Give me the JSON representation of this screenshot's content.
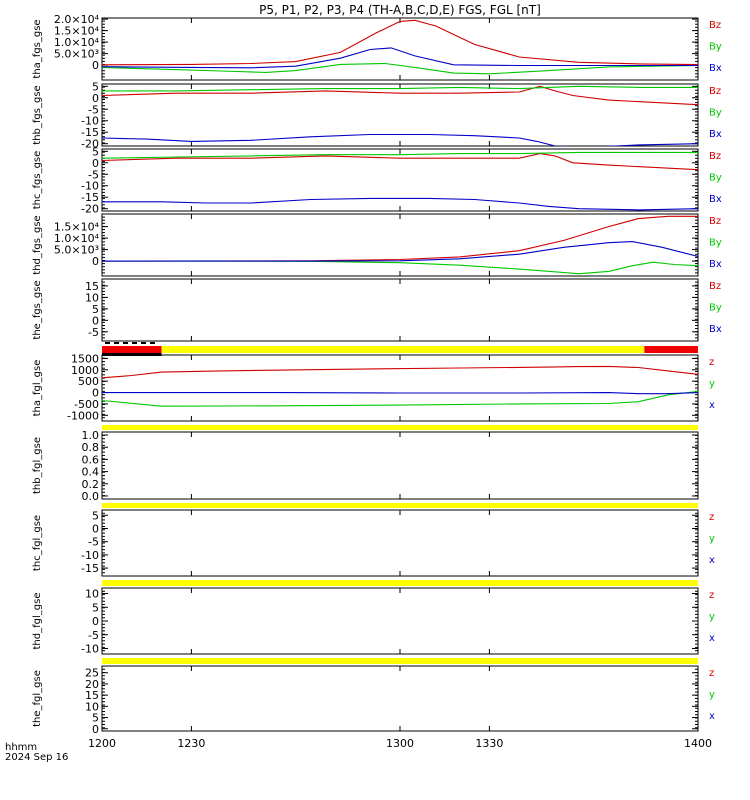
{
  "title": "P5, P1, P2, P3, P4 (TH-A,B,C,D,E) FGS, FGL [nT]",
  "footer": {
    "time_label": "hhmm",
    "date_label": "2024 Sep 16"
  },
  "colors": {
    "x": "#0000c8",
    "y": "#00c800",
    "z": "#d00000",
    "bar_yellow": "#ffff00",
    "bar_red": "#ee0000",
    "bar_black": "#000000"
  },
  "chart_data": [
    {
      "type": "line",
      "ylabel": "tha_fgs_gse",
      "ylim": [
        -6500,
        20500
      ],
      "yticks": [
        0,
        5000,
        10000,
        15000,
        20000
      ],
      "ytick_labels": [
        "0",
        "5.0×10³",
        "1.0×10⁴",
        "1.5×10⁴",
        "2.0×10⁴"
      ],
      "xlim": [
        1200,
        1400
      ],
      "legend": [
        "Bz",
        "By",
        "Bx"
      ],
      "series": [
        {
          "name": "Bz",
          "color": "#d00000",
          "x": [
            1200,
            1230,
            1250,
            1265,
            1280,
            1292,
            1300,
            1305,
            1312,
            1325,
            1340,
            1360,
            1380,
            1400
          ],
          "y": [
            100,
            300,
            700,
            1500,
            5500,
            14000,
            19000,
            19500,
            17000,
            9000,
            3500,
            1200,
            500,
            200
          ]
        },
        {
          "name": "By",
          "color": "#00c800",
          "x": [
            1200,
            1220,
            1240,
            1255,
            1265,
            1280,
            1295,
            1305,
            1318,
            1330,
            1350,
            1370,
            1400
          ],
          "y": [
            -1000,
            -1800,
            -2600,
            -3200,
            -2400,
            300,
            700,
            -1000,
            -3500,
            -3800,
            -2400,
            -800,
            -200
          ]
        },
        {
          "name": "Bx",
          "color": "#0000c8",
          "x": [
            1200,
            1230,
            1250,
            1265,
            1280,
            1290,
            1297,
            1305,
            1318,
            1340,
            1400
          ],
          "y": [
            -700,
            -1000,
            -1200,
            -500,
            3000,
            6800,
            7500,
            4000,
            100,
            -200,
            -200
          ]
        }
      ]
    },
    {
      "type": "line",
      "ylabel": "thb_fgs_gse",
      "ylim": [
        -21,
        6
      ],
      "yticks": [
        5,
        0,
        -5,
        -10,
        -15,
        -20
      ],
      "ytick_labels": [
        "5",
        "0",
        "-5",
        "-10",
        "-15",
        "-20"
      ],
      "xlim": [
        1200,
        1400
      ],
      "legend": [
        "Bz",
        "By",
        "Bx"
      ],
      "series": [
        {
          "name": "Bz",
          "color": "#d00000",
          "x": [
            1200,
            1225,
            1250,
            1275,
            1300,
            1320,
            1340,
            1347,
            1352,
            1358,
            1370,
            1400
          ],
          "y": [
            1,
            2,
            2,
            3,
            2,
            2,
            2.5,
            5,
            3,
            1,
            -1,
            -3
          ]
        },
        {
          "name": "By",
          "color": "#00c800",
          "x": [
            1200,
            1225,
            1250,
            1275,
            1300,
            1320,
            1340,
            1360,
            1380,
            1400
          ],
          "y": [
            3,
            3,
            3.5,
            4,
            4,
            4.5,
            4,
            5,
            4.5,
            4.5
          ]
        },
        {
          "name": "Bx",
          "color": "#0000c8",
          "x": [
            1200,
            1215,
            1230,
            1250,
            1270,
            1290,
            1310,
            1325,
            1340,
            1346,
            1352,
            1365,
            1380,
            1400
          ],
          "y": [
            -17.5,
            -18,
            -19,
            -18.5,
            -17,
            -16,
            -16,
            -16.5,
            -17.5,
            -19,
            -21,
            -21.5,
            -20.5,
            -20
          ]
        }
      ]
    },
    {
      "type": "line",
      "ylabel": "thc_fgs_gse",
      "ylim": [
        -21,
        6
      ],
      "yticks": [
        5,
        0,
        -5,
        -10,
        -15,
        -20
      ],
      "ytick_labels": [
        "5",
        "0",
        "-5",
        "-10",
        "-15",
        "-20"
      ],
      "xlim": [
        1200,
        1400
      ],
      "legend": [
        "Bz",
        "By",
        "Bx"
      ],
      "series": [
        {
          "name": "Bz",
          "color": "#d00000",
          "x": [
            1200,
            1225,
            1250,
            1275,
            1300,
            1320,
            1340,
            1347,
            1352,
            1358,
            1370,
            1400
          ],
          "y": [
            1,
            2,
            2,
            3,
            2,
            2,
            2,
            4,
            3,
            0,
            -1,
            -3
          ]
        },
        {
          "name": "By",
          "color": "#00c800",
          "x": [
            1200,
            1225,
            1250,
            1275,
            1300,
            1320,
            1340,
            1360,
            1380,
            1400
          ],
          "y": [
            2,
            2.5,
            3,
            3.5,
            3.5,
            4,
            4,
            4.5,
            4.5,
            4.5
          ]
        },
        {
          "name": "Bx",
          "color": "#0000c8",
          "x": [
            1200,
            1220,
            1235,
            1250,
            1270,
            1290,
            1310,
            1325,
            1340,
            1350,
            1360,
            1380,
            1400
          ],
          "y": [
            -17,
            -17,
            -17.5,
            -17.5,
            -16,
            -15.5,
            -15.5,
            -16,
            -17.5,
            -19,
            -20,
            -20.5,
            -20
          ]
        }
      ]
    },
    {
      "type": "line",
      "ylabel": "thd_fgs_gse",
      "ylim": [
        -6500,
        20500
      ],
      "yticks": [
        0,
        5000,
        10000,
        15000
      ],
      "ytick_labels": [
        "0",
        "5.0×10³",
        "1.0×10⁴",
        "1.5×10⁴"
      ],
      "xlim": [
        1200,
        1400
      ],
      "legend": [
        "Bz",
        "By",
        "Bx"
      ],
      "series": [
        {
          "name": "Bz",
          "color": "#d00000",
          "x": [
            1200,
            1270,
            1300,
            1320,
            1340,
            1355,
            1370,
            1380,
            1390,
            1400
          ],
          "y": [
            0,
            100,
            700,
            1800,
            4500,
            9000,
            15000,
            18500,
            19500,
            19500
          ]
        },
        {
          "name": "By",
          "color": "#00c800",
          "x": [
            1200,
            1270,
            1300,
            1320,
            1340,
            1360,
            1370,
            1378,
            1385,
            1392,
            1400
          ],
          "y": [
            0,
            -100,
            -700,
            -1800,
            -3500,
            -5500,
            -4500,
            -2000,
            -500,
            -1500,
            -2000
          ]
        },
        {
          "name": "Bx",
          "color": "#0000c8",
          "x": [
            1200,
            1270,
            1300,
            1320,
            1340,
            1355,
            1370,
            1378,
            1388,
            1400
          ],
          "y": [
            0,
            0,
            100,
            1000,
            3000,
            6000,
            8000,
            8500,
            6000,
            2000
          ]
        }
      ]
    },
    {
      "type": "line",
      "ylabel": "the_fgs_gse",
      "ylim": [
        -9,
        18
      ],
      "yticks": [
        15,
        10,
        5,
        0,
        -5
      ],
      "ytick_labels": [
        "15",
        "10",
        "5",
        "0",
        "-5"
      ],
      "xlim": [
        1200,
        1400
      ],
      "legend": [
        "Bz",
        "By",
        "Bx"
      ],
      "series": []
    },
    {
      "type": "line",
      "ylabel": "tha_fgl_gse",
      "ylim": [
        -1250,
        1650
      ],
      "yticks": [
        1500,
        1000,
        500,
        0,
        -500,
        -1000
      ],
      "ytick_labels": [
        "1500",
        "1000",
        "500",
        "0",
        "-500",
        "-1000"
      ],
      "xlim": [
        1200,
        1400
      ],
      "legend": [
        "z",
        "y",
        "x"
      ],
      "series": [
        {
          "name": "z",
          "color": "#d00000",
          "x": [
            1200,
            1210,
            1220,
            1240,
            1280,
            1320,
            1350,
            1360,
            1370,
            1380,
            1390,
            1400
          ],
          "y": [
            650,
            750,
            900,
            950,
            1020,
            1080,
            1120,
            1140,
            1150,
            1100,
            950,
            800
          ]
        },
        {
          "name": "y",
          "color": "#00c800",
          "x": [
            1200,
            1212,
            1220,
            1260,
            1300,
            1340,
            1370,
            1380,
            1390,
            1400
          ],
          "y": [
            -350,
            -500,
            -600,
            -580,
            -550,
            -500,
            -480,
            -400,
            -100,
            50
          ]
        },
        {
          "name": "x",
          "color": "#0000c8",
          "x": [
            1200,
            1220,
            1260,
            1300,
            1340,
            1370,
            1380,
            1390,
            1400
          ],
          "y": [
            0,
            0,
            0,
            -20,
            -20,
            0,
            -50,
            -50,
            0
          ]
        }
      ]
    },
    {
      "type": "line",
      "ylabel": "thb_fgl_gse",
      "ylim": [
        -0.05,
        1.05
      ],
      "yticks": [
        1.0,
        0.8,
        0.6,
        0.4,
        0.2,
        0.0
      ],
      "ytick_labels": [
        "1.0",
        "0.8",
        "0.6",
        "0.4",
        "0.2",
        "0.0"
      ],
      "xlim": [
        1200,
        1400
      ],
      "legend": [],
      "series": []
    },
    {
      "type": "line",
      "ylabel": "thc_fgl_gse",
      "ylim": [
        -18,
        7
      ],
      "yticks": [
        5,
        0,
        -5,
        -10,
        -15
      ],
      "ytick_labels": [
        "5",
        "0",
        "-5",
        "-10",
        "-15"
      ],
      "xlim": [
        1200,
        1400
      ],
      "legend": [
        "z",
        "y",
        "x"
      ],
      "series": []
    },
    {
      "type": "line",
      "ylabel": "thd_fgl_gse",
      "ylim": [
        -12,
        12
      ],
      "yticks": [
        10,
        5,
        0,
        -5,
        -10
      ],
      "ytick_labels": [
        "10",
        "5",
        "0",
        "-5",
        "-10"
      ],
      "xlim": [
        1200,
        1400
      ],
      "legend": [
        "z",
        "y",
        "x"
      ],
      "series": []
    },
    {
      "type": "line",
      "ylabel": "the_fgl_gse",
      "ylim": [
        -1,
        28
      ],
      "yticks": [
        25,
        20,
        15,
        10,
        5,
        0
      ],
      "ytick_labels": [
        "25",
        "20",
        "15",
        "10",
        "5",
        "0"
      ],
      "xlim": [
        1200,
        1400
      ],
      "legend": [
        "z",
        "y",
        "x"
      ],
      "series": []
    }
  ],
  "xaxis": {
    "ticks": [
      1200,
      1230,
      1300,
      1330,
      1400
    ],
    "tick_labels": [
      "1200",
      "1230",
      "1300",
      "1330",
      "1400"
    ]
  },
  "status_bars": [
    {
      "segments": [
        {
          "x0": 1200,
          "x1": 1220,
          "color": "#ee0000"
        },
        {
          "x0": 1220,
          "x1": 1382,
          "color": "#ffff00"
        },
        {
          "x0": 1382,
          "x1": 1400,
          "color": "#ee0000"
        }
      ],
      "underline": {
        "x0": 1200,
        "x1": 1220,
        "color": "#000000"
      }
    },
    {
      "segments": [
        {
          "x0": 1200,
          "x1": 1400,
          "color": "#ffff00"
        }
      ]
    },
    {
      "segments": [
        {
          "x0": 1200,
          "x1": 1400,
          "color": "#ffff00"
        }
      ]
    },
    {
      "segments": [
        {
          "x0": 1200,
          "x1": 1400,
          "color": "#ffff00"
        }
      ]
    },
    {
      "segments": [
        {
          "x0": 1200,
          "x1": 1400,
          "color": "#ffff00"
        }
      ]
    }
  ]
}
